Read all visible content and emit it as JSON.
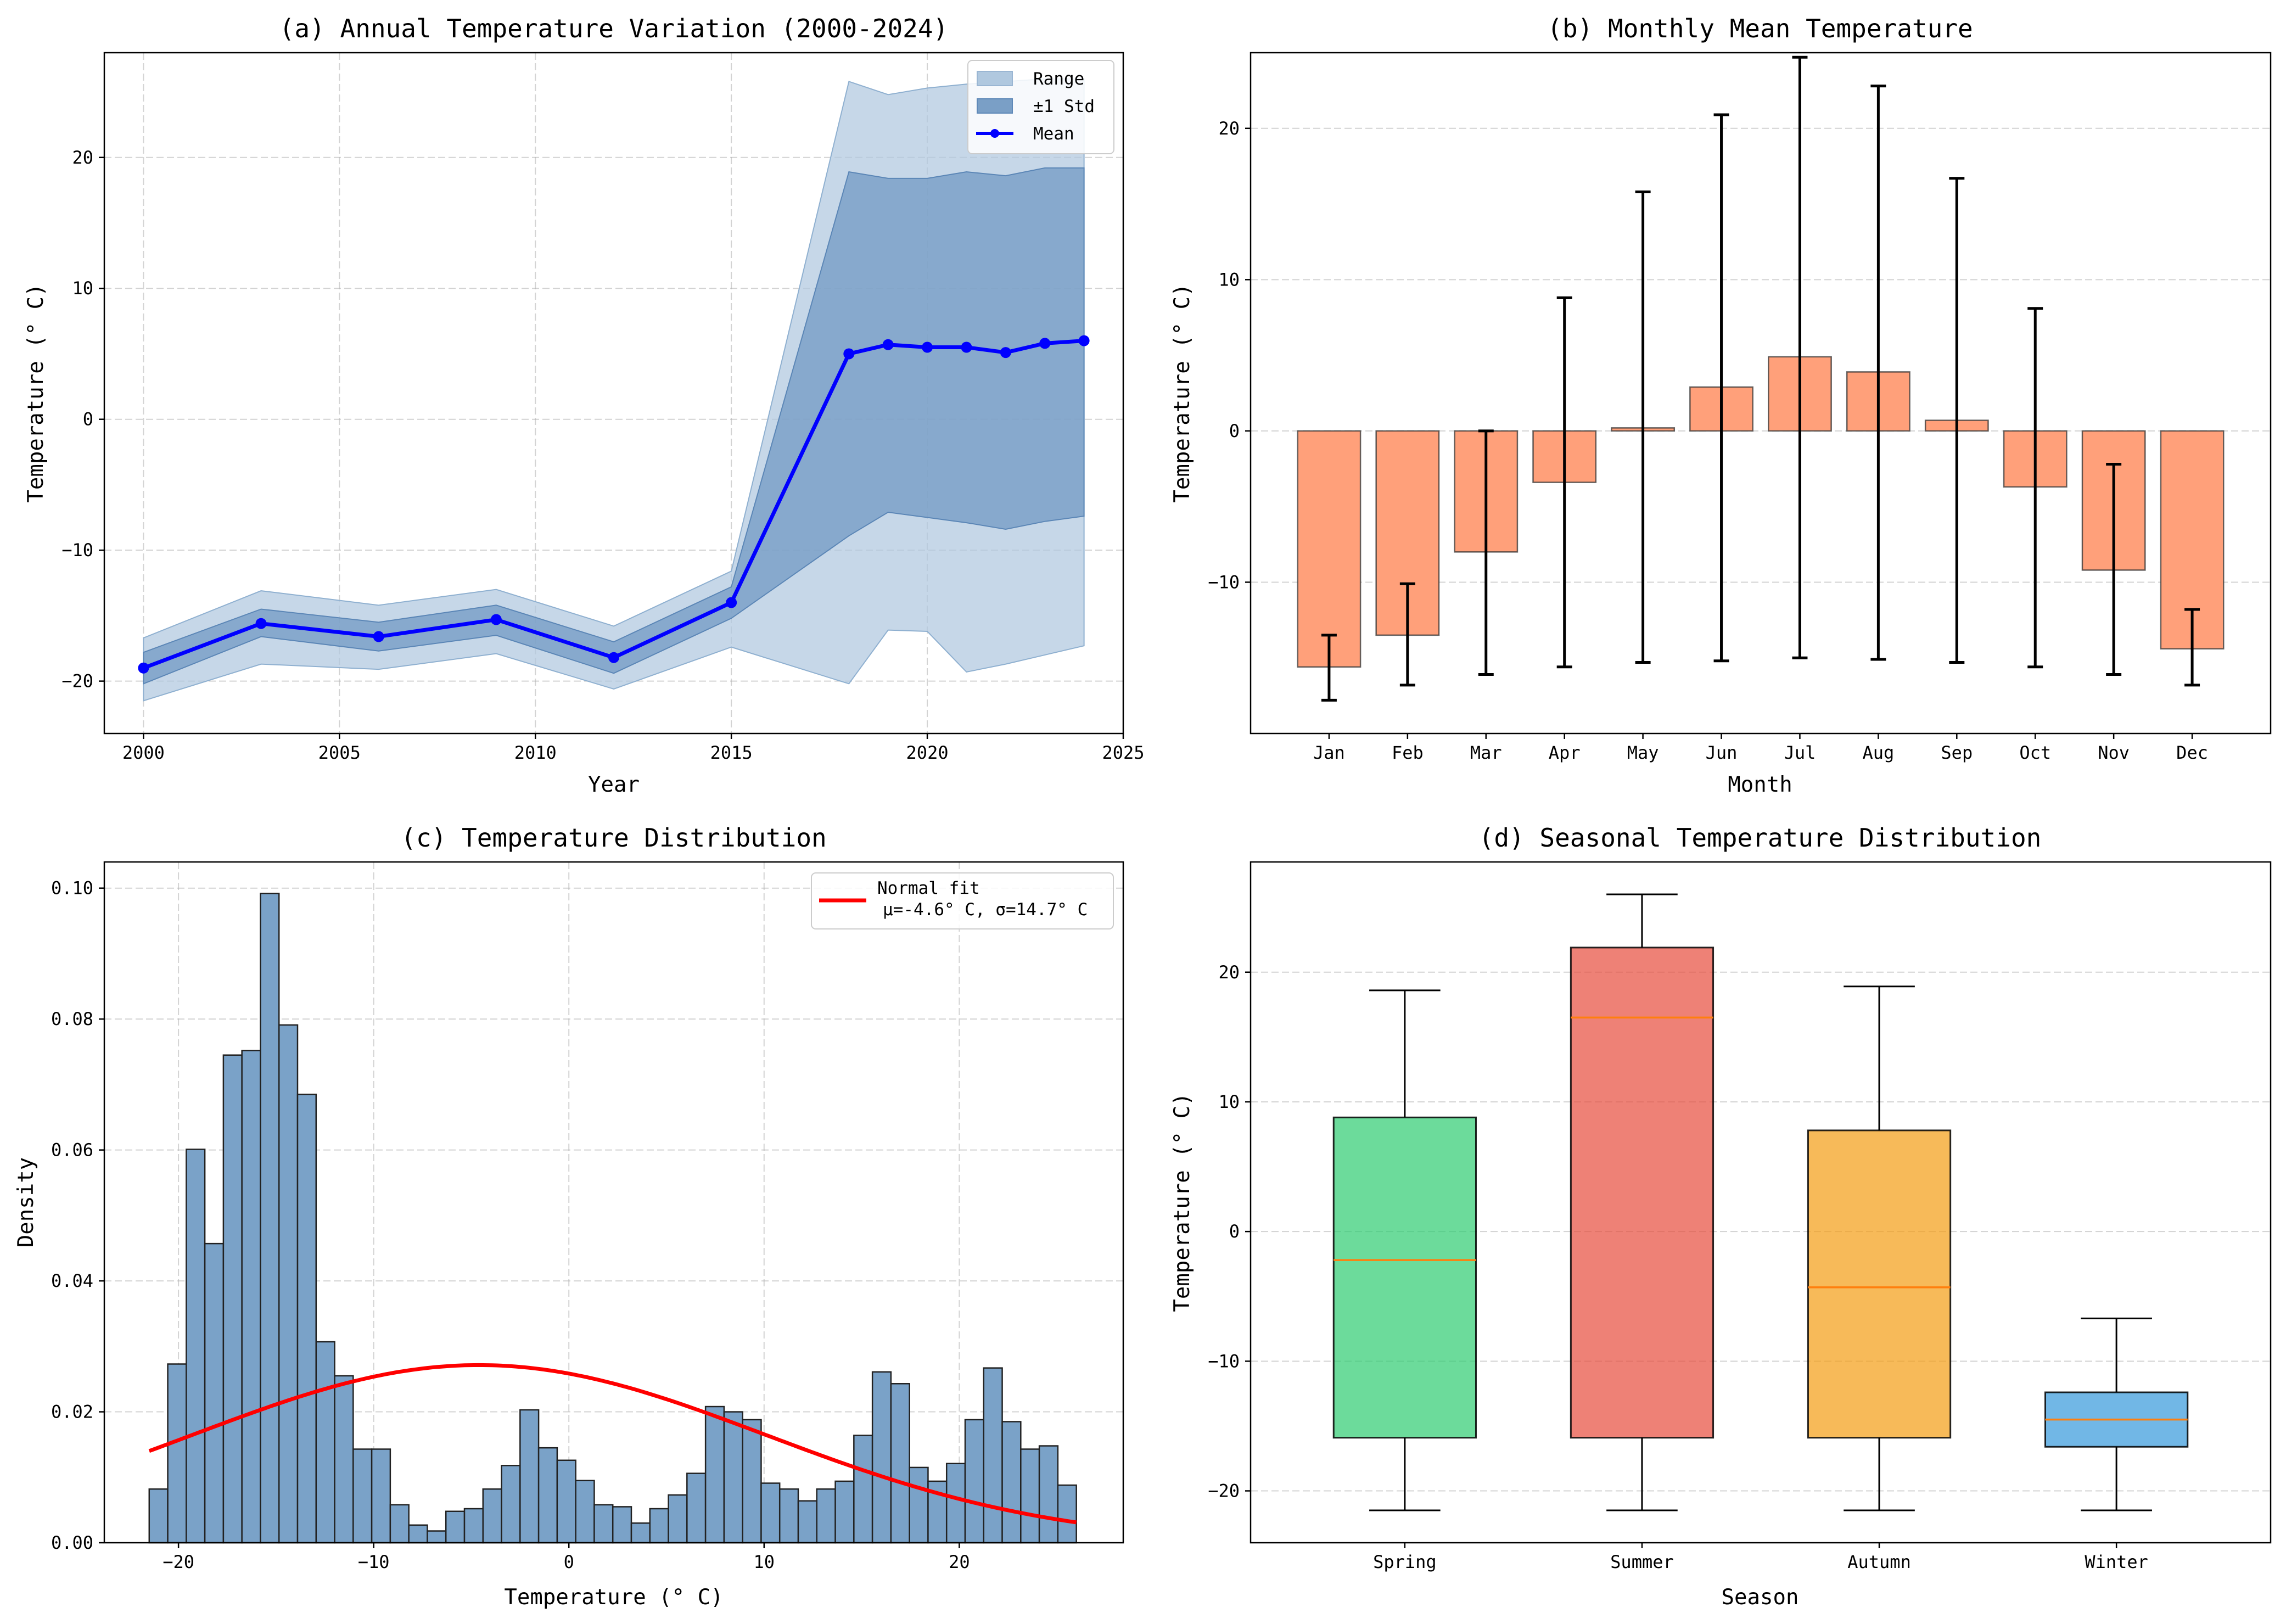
{
  "figure": {
    "background": "#ffffff"
  },
  "chart_data": [
    {
      "id": "a",
      "type": "line",
      "title": "(a) Annual Temperature Variation (2000-2024)",
      "xlabel": "Year",
      "ylabel": "Temperature (° C)",
      "xlim": [
        1999,
        2025
      ],
      "ylim": [
        -24,
        28
      ],
      "xticks": [
        2000,
        2005,
        2010,
        2015,
        2020,
        2025
      ],
      "yticks": [
        -20,
        -10,
        0,
        10,
        20
      ],
      "grid": true,
      "legend_position": "top-right",
      "legend": [
        {
          "label": "Range",
          "kind": "fill",
          "color": "#b0c8df"
        },
        {
          "label": "±1 Std",
          "kind": "fill",
          "color": "#7a9fc6"
        },
        {
          "label": "Mean",
          "kind": "line",
          "color": "#0000ff"
        }
      ],
      "x": [
        2000,
        2003,
        2006,
        2009,
        2012,
        2015,
        2018,
        2019,
        2020,
        2021,
        2022,
        2023,
        2024
      ],
      "mean": [
        -19.0,
        -15.6,
        -16.6,
        -15.3,
        -18.2,
        -14.0,
        5.0,
        5.7,
        5.5,
        5.5,
        5.1,
        5.8,
        6.0
      ],
      "std_upper": [
        -17.8,
        -14.5,
        -15.5,
        -14.2,
        -17.0,
        -12.8,
        18.9,
        18.4,
        18.4,
        18.9,
        18.6,
        19.2,
        19.2
      ],
      "std_lower": [
        -20.2,
        -16.6,
        -17.7,
        -16.5,
        -19.4,
        -15.2,
        -8.9,
        -7.1,
        -7.5,
        -7.9,
        -8.4,
        -7.8,
        -7.4
      ],
      "range_upper": [
        -16.7,
        -13.1,
        -14.2,
        -13.0,
        -15.8,
        -11.6,
        25.8,
        24.8,
        25.3,
        25.6,
        25.8,
        26.0,
        26.0
      ],
      "range_lower": [
        -21.5,
        -18.7,
        -19.1,
        -17.9,
        -20.6,
        -17.4,
        -20.2,
        -16.1,
        -16.2,
        -19.3,
        -18.7,
        -18.0,
        -17.3
      ]
    },
    {
      "id": "b",
      "type": "bar",
      "title": "(b) Monthly Mean Temperature",
      "xlabel": "Month",
      "ylabel": "Temperature (° C)",
      "ylim": [
        -20,
        25
      ],
      "yticks": [
        -10,
        0,
        10,
        20
      ],
      "grid": true,
      "bar_color": "#ffa07a",
      "categories": [
        "Jan",
        "Feb",
        "Mar",
        "Apr",
        "May",
        "Jun",
        "Jul",
        "Aug",
        "Sep",
        "Oct",
        "Nov",
        "Dec"
      ],
      "values": [
        -15.6,
        -13.5,
        -8.0,
        -3.4,
        0.2,
        2.9,
        4.9,
        3.9,
        0.7,
        -3.7,
        -9.2,
        -14.4
      ],
      "err_low": [
        -17.8,
        -16.8,
        -16.1,
        -15.6,
        -15.3,
        -15.2,
        -15.0,
        -15.1,
        -15.3,
        -15.6,
        -16.1,
        -16.8
      ],
      "err_high": [
        -13.5,
        -10.1,
        0.0,
        8.8,
        15.8,
        20.9,
        24.7,
        22.8,
        16.7,
        8.1,
        -2.2,
        -11.8
      ]
    },
    {
      "id": "c",
      "type": "bar",
      "title": "(c) Temperature Distribution",
      "xlabel": "Temperature (° C)",
      "ylabel": "Density",
      "xlim": [
        -23.8,
        28.4
      ],
      "ylim": [
        0,
        0.104
      ],
      "xticks": [
        -20,
        -10,
        0,
        10,
        20
      ],
      "yticks": [
        0.0,
        0.02,
        0.04,
        0.06,
        0.08,
        0.1
      ],
      "ytick_labels": [
        "0.00",
        "0.02",
        "0.04",
        "0.06",
        "0.08",
        "0.10"
      ],
      "grid": true,
      "bar_color": "#7aa2c8",
      "bin_start": -21.5,
      "bin_width": 0.95,
      "densities": [
        0.0082,
        0.0273,
        0.0601,
        0.0457,
        0.0745,
        0.0752,
        0.0992,
        0.0791,
        0.0685,
        0.0307,
        0.0255,
        0.0143,
        0.0143,
        0.0058,
        0.0027,
        0.0018,
        0.0048,
        0.0052,
        0.0082,
        0.0118,
        0.0203,
        0.0145,
        0.0126,
        0.0095,
        0.0058,
        0.0055,
        0.003,
        0.0052,
        0.0073,
        0.0106,
        0.0208,
        0.02,
        0.0188,
        0.0091,
        0.0082,
        0.0064,
        0.0082,
        0.0094,
        0.0164,
        0.0261,
        0.0243,
        0.0115,
        0.0094,
        0.0121,
        0.0188,
        0.0267,
        0.0185,
        0.0143,
        0.0148,
        0.0088
      ],
      "fit": {
        "label": "Normal fit\nμ=-4.6° C, σ=14.7° C",
        "label_line1": "Normal fit",
        "label_line2": "μ=-4.6° C, σ=14.7° C",
        "mu": -4.6,
        "sigma": 14.7,
        "color": "#ff0000"
      },
      "legend_position": "top-right"
    },
    {
      "id": "d",
      "type": "box",
      "title": "(d) Seasonal Temperature Distribution",
      "xlabel": "Season",
      "ylabel": "Temperature (° C)",
      "ylim": [
        -24,
        28.5
      ],
      "yticks": [
        -20,
        -10,
        0,
        10,
        20
      ],
      "grid": true,
      "categories": [
        "Spring",
        "Summer",
        "Autumn",
        "Winter"
      ],
      "colors": [
        "#2ecc71",
        "#e74c3c",
        "#f39c12",
        "#3498db"
      ],
      "whisker_low": [
        -21.5,
        -21.5,
        -21.5,
        -21.5
      ],
      "q1": [
        -15.9,
        -15.9,
        -15.9,
        -16.6
      ],
      "median": [
        -2.2,
        16.5,
        -4.3,
        -14.5
      ],
      "q3": [
        8.8,
        21.9,
        7.8,
        -12.4
      ],
      "whisker_high": [
        18.6,
        26.0,
        18.9,
        -6.7
      ]
    }
  ]
}
